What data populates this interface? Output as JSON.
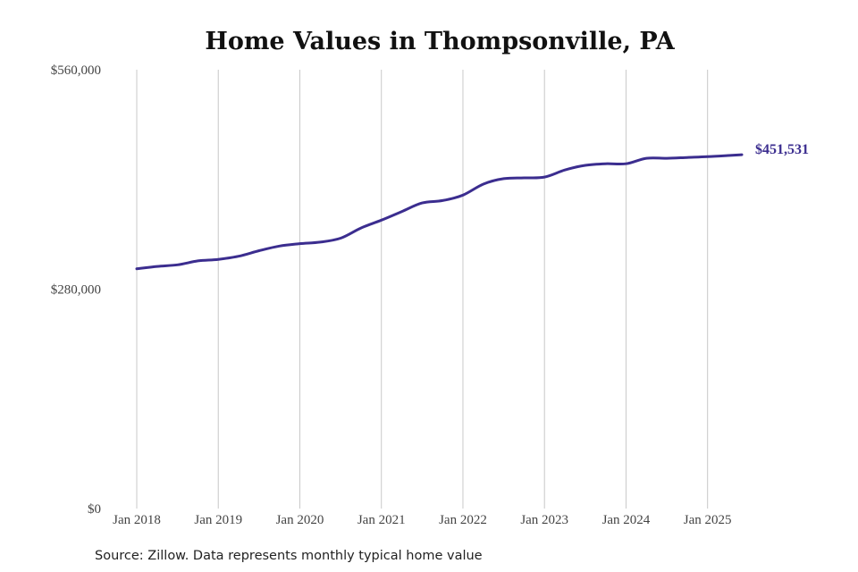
{
  "chart_data": {
    "type": "line",
    "title": "Home Values in Thompsonville, PA",
    "xlabel": "",
    "ylabel": "",
    "ylim": [
      0,
      560000
    ],
    "y_ticks": [
      {
        "value": 0,
        "label": "$0"
      },
      {
        "value": 280000,
        "label": "$280,000"
      },
      {
        "value": 560000,
        "label": "$560,000"
      }
    ],
    "x_ticks": [
      {
        "value": 2018.0,
        "label": "Jan 2018"
      },
      {
        "value": 2019.0,
        "label": "Jan 2019"
      },
      {
        "value": 2020.0,
        "label": "Jan 2020"
      },
      {
        "value": 2021.0,
        "label": "Jan 2021"
      },
      {
        "value": 2022.0,
        "label": "Jan 2022"
      },
      {
        "value": 2023.0,
        "label": "Jan 2023"
      },
      {
        "value": 2024.0,
        "label": "Jan 2024"
      },
      {
        "value": 2025.0,
        "label": "Jan 2025"
      }
    ],
    "grid": "vertical",
    "x": [
      2018.0,
      2018.25,
      2018.5,
      2018.75,
      2019.0,
      2019.25,
      2019.5,
      2019.75,
      2020.0,
      2020.25,
      2020.5,
      2020.75,
      2021.0,
      2021.25,
      2021.5,
      2021.75,
      2022.0,
      2022.25,
      2022.5,
      2022.75,
      2023.0,
      2023.25,
      2023.5,
      2023.75,
      2024.0,
      2024.25,
      2024.5,
      2024.75,
      2025.0,
      2025.25,
      2025.42
    ],
    "series": [
      {
        "color": "#3b2d8f",
        "values": [
          306000,
          309000,
          311000,
          316000,
          318000,
          322000,
          329000,
          335000,
          338000,
          340000,
          345000,
          358000,
          368000,
          379000,
          390000,
          393000,
          400000,
          414000,
          421000,
          422000,
          423000,
          432000,
          438000,
          440000,
          440000,
          447000,
          447000,
          448000,
          449000,
          450500,
          451531
        ]
      }
    ],
    "end_label": "$451,531",
    "source": "Source: Zillow. Data represents monthly typical home value"
  }
}
